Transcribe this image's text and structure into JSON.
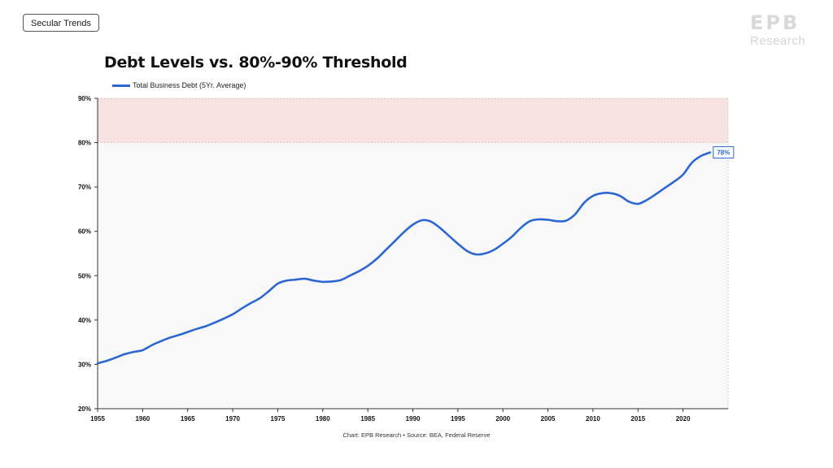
{
  "tag_label": "Secular Trends",
  "logo": {
    "mark": "EPB",
    "sub": "Research"
  },
  "source_note": "Chart: EPB Research  •  Source: BEA, Federal Reserve",
  "colors": {
    "line": "#2c67d1",
    "threshold_band": "#f7e1e1",
    "plot_bg": "#f8f8f8"
  },
  "chart_data": {
    "type": "line",
    "title": "Debt Levels vs. 80%-90% Threshold",
    "xlabel": "",
    "ylabel": "",
    "xlim": [
      1955,
      2025
    ],
    "ylim": [
      20,
      90
    ],
    "x_ticks": [
      "1955",
      "1960",
      "1965",
      "1970",
      "1975",
      "1980",
      "1985",
      "1990",
      "1995",
      "2000",
      "2005",
      "2010",
      "2015",
      "2020"
    ],
    "y_ticks": [
      "20%",
      "30%",
      "40%",
      "50%",
      "60%",
      "70%",
      "80%",
      "90%"
    ],
    "threshold_band": [
      80,
      90
    ],
    "grid": false,
    "legend_position": "top-left",
    "end_label": "78%",
    "series": [
      {
        "name": "Total Business Debt (5Yr. Average)",
        "x": [
          1955,
          1956,
          1957,
          1958,
          1959,
          1960,
          1961,
          1962,
          1963,
          1964,
          1965,
          1966,
          1967,
          1968,
          1969,
          1970,
          1971,
          1972,
          1973,
          1974,
          1975,
          1976,
          1977,
          1978,
          1979,
          1980,
          1981,
          1982,
          1983,
          1984,
          1985,
          1986,
          1987,
          1988,
          1989,
          1990,
          1991,
          1992,
          1993,
          1994,
          1995,
          1996,
          1997,
          1998,
          1999,
          2000,
          2001,
          2002,
          2003,
          2004,
          2005,
          2006,
          2007,
          2008,
          2009,
          2010,
          2011,
          2012,
          2013,
          2014,
          2015,
          2016,
          2017,
          2018,
          2019,
          2020,
          2021,
          2022,
          2023
        ],
        "values": [
          30.2,
          30.8,
          31.5,
          32.3,
          32.8,
          33.2,
          34.3,
          35.2,
          36.0,
          36.6,
          37.3,
          38.0,
          38.6,
          39.4,
          40.3,
          41.3,
          42.6,
          43.8,
          44.9,
          46.5,
          48.2,
          48.9,
          49.1,
          49.3,
          48.9,
          48.6,
          48.7,
          49.0,
          50.0,
          51.0,
          52.2,
          53.8,
          55.8,
          57.8,
          59.8,
          61.5,
          62.5,
          62.2,
          60.8,
          59.0,
          57.2,
          55.6,
          54.8,
          55.0,
          55.8,
          57.2,
          58.8,
          60.8,
          62.3,
          62.7,
          62.6,
          62.3,
          62.4,
          63.8,
          66.4,
          68.0,
          68.6,
          68.6,
          68.0,
          66.7,
          66.2,
          67.1,
          68.4,
          69.8,
          71.2,
          72.8,
          75.5,
          77.0,
          77.8
        ]
      }
    ]
  }
}
